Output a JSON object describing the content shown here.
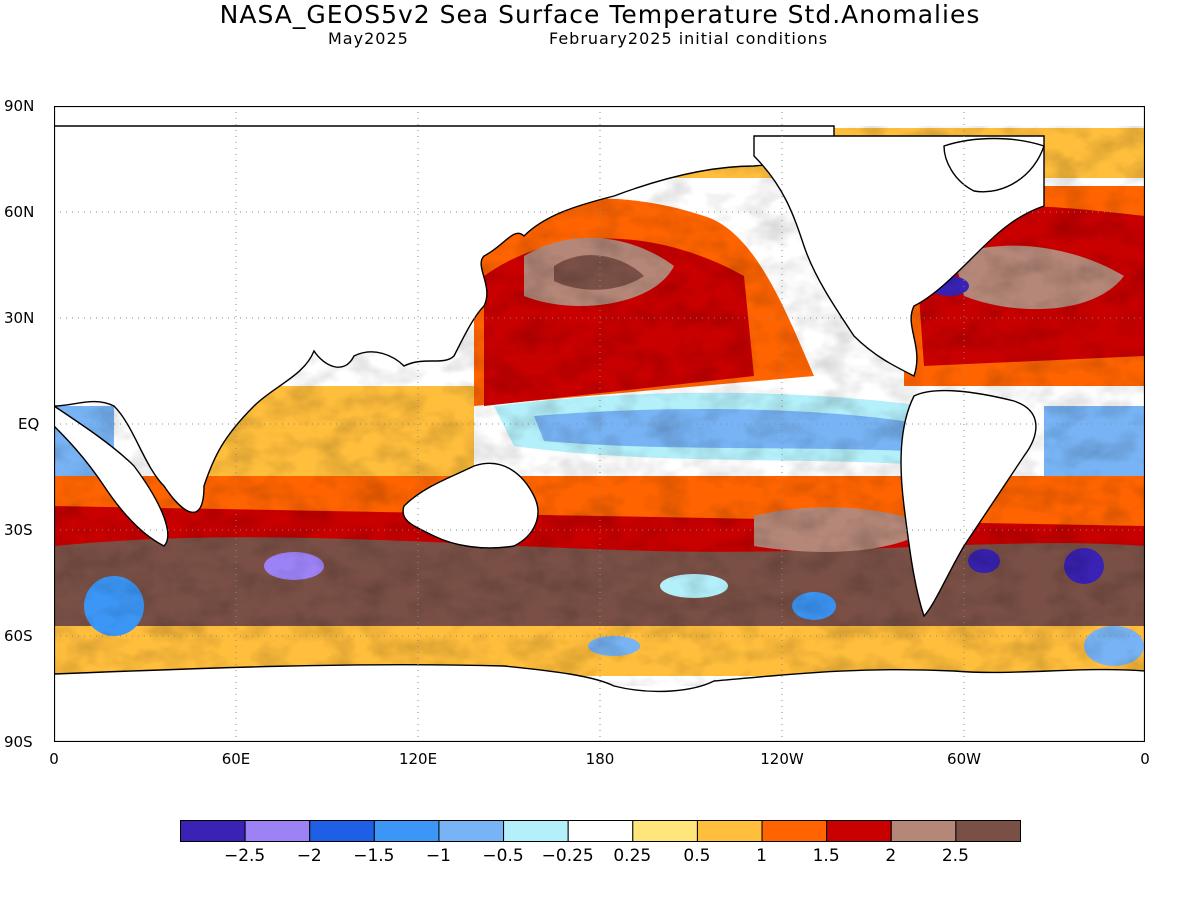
{
  "title": "NASA_GEOS5v2 Sea Surface Temperature Std.Anomalies",
  "subtitle_left": "May2025",
  "subtitle_right": "February2025 initial conditions",
  "y_ticks": [
    "90N",
    "60N",
    "30N",
    "EQ",
    "30S",
    "60S",
    "90S"
  ],
  "x_ticks": [
    "0",
    "60E",
    "120E",
    "180",
    "120W",
    "60W",
    "0"
  ],
  "legend": {
    "colors": [
      "#3a22b4",
      "#9c82f5",
      "#1e5fe6",
      "#3c96f5",
      "#78b4f5",
      "#b4f0fa",
      "#ffffff",
      "#ffe67a",
      "#ffbe3c",
      "#ff6400",
      "#c80000",
      "#b48778",
      "#7a5046"
    ],
    "labels": [
      "−2.5",
      "−2",
      "−1.5",
      "−1",
      "−0.5",
      "−0.25",
      "0.25",
      "0.5",
      "1",
      "1.5",
      "2",
      "2.5"
    ]
  }
}
